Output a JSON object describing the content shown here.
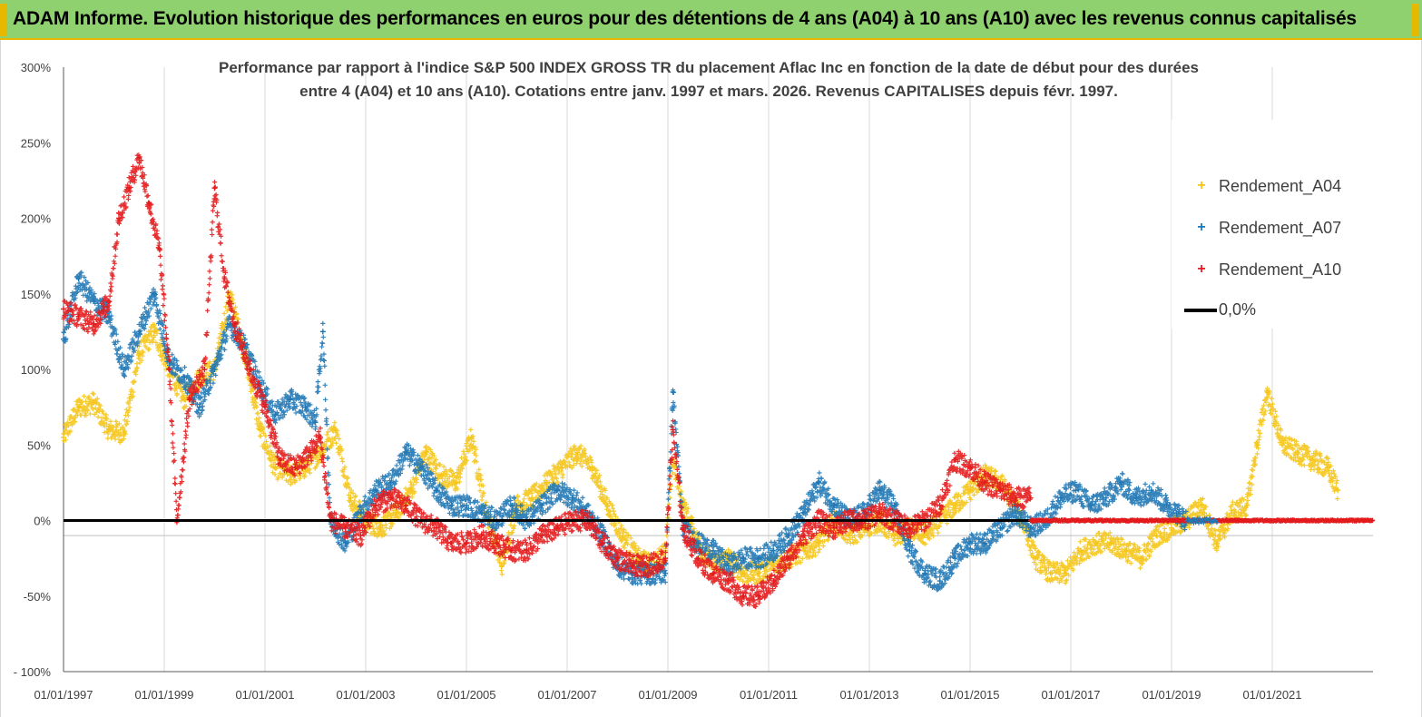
{
  "banner": {
    "title": "ADAM Informe. Evolution historique des performances en euros pour des détentions de 4 ans (A04) à 10 ans (A10) avec les revenus connus capitalisés"
  },
  "colors": {
    "banner_bg": "#8fd16f",
    "accent": "#e6b800",
    "A04": "#f5c518",
    "A07": "#1f77b4",
    "A10": "#e31a1c",
    "zero": "#000000"
  },
  "chart_data": {
    "type": "scatter",
    "title_line1": "Performance par rapport à l'indice S&P 500 INDEX GROSS TR  du placement Aflac Inc en fonction de la date de début pour des durées",
    "title_line2": "entre 4 (A04) et 10 ans (A10). Cotations entre janv. 1997 et mars. 2026. Revenus CAPITALISES depuis févr. 1997.",
    "xlabel": "",
    "ylabel": "",
    "x_range": [
      1997.0,
      2023.0
    ],
    "ylim": [
      -100,
      300
    ],
    "y_ticks": [
      -100,
      -50,
      0,
      50,
      100,
      150,
      200,
      250,
      300
    ],
    "y_tick_labels": [
      "- 100%",
      "-50%",
      "0%",
      "50%",
      "100%",
      "150%",
      "200%",
      "250%",
      "300%"
    ],
    "x_ticks": [
      1997,
      1999,
      2001,
      2003,
      2005,
      2007,
      2009,
      2011,
      2013,
      2015,
      2017,
      2019,
      2021
    ],
    "x_tick_labels": [
      "01/01/1997",
      "01/01/1999",
      "01/01/2001",
      "01/01/2003",
      "01/01/2005",
      "01/01/2007",
      "01/01/2009",
      "01/01/2011",
      "01/01/2013",
      "01/01/2015",
      "01/01/2017",
      "01/01/2019",
      "01/01/2021"
    ],
    "grid": "vertical",
    "legend_position": "top-right",
    "series": [
      {
        "name": "Rendement_A04",
        "key": "A04",
        "x": [
          1997.0,
          1997.3,
          1997.6,
          1997.9,
          1998.2,
          1998.5,
          1998.8,
          1999.1,
          1999.4,
          1999.7,
          2000.0,
          2000.3,
          2000.6,
          2000.9,
          2001.2,
          2001.5,
          2001.8,
          2002.1,
          2002.4,
          2002.7,
          2003.0,
          2003.3,
          2003.6,
          2003.9,
          2004.2,
          2004.5,
          2004.8,
          2005.1,
          2005.4,
          2005.7,
          2006.0,
          2006.3,
          2006.6,
          2006.9,
          2007.2,
          2007.5,
          2007.8,
          2008.1,
          2008.4,
          2008.7,
          2008.95,
          2009.1,
          2009.3,
          2009.6,
          2009.9,
          2010.2,
          2010.5,
          2010.8,
          2011.1,
          2011.4,
          2011.7,
          2012.0,
          2012.3,
          2012.6,
          2012.9,
          2013.2,
          2013.5,
          2013.8,
          2014.1,
          2014.4,
          2014.7,
          2015.0,
          2015.3,
          2015.6,
          2015.9,
          2016.1,
          2016.3,
          2016.6,
          2016.9,
          2017.2,
          2017.5,
          2017.8,
          2018.1,
          2018.4,
          2018.7,
          2019.0,
          2019.3,
          2019.6,
          2019.9,
          2020.2,
          2020.5,
          2020.7,
          2020.9,
          2021.2,
          2021.5,
          2021.8,
          2022.1,
          2022.3
        ],
        "values": [
          55,
          75,
          78,
          60,
          58,
          110,
          125,
          100,
          80,
          95,
          100,
          150,
          110,
          60,
          35,
          30,
          35,
          45,
          60,
          15,
          0,
          -5,
          5,
          20,
          45,
          30,
          25,
          55,
          5,
          -30,
          10,
          15,
          25,
          35,
          45,
          35,
          10,
          -10,
          -25,
          -30,
          -20,
          40,
          10,
          -15,
          -30,
          -25,
          -35,
          -35,
          -30,
          -25,
          -20,
          -15,
          0,
          -10,
          -5,
          0,
          -10,
          -5,
          -10,
          0,
          10,
          20,
          30,
          25,
          10,
          -5,
          -25,
          -35,
          -35,
          -20,
          -15,
          -15,
          -20,
          -25,
          -10,
          -5,
          0,
          10,
          -15,
          5,
          10,
          50,
          85,
          50,
          45,
          40,
          35,
          20
        ]
      },
      {
        "name": "Rendement_A07",
        "key": "A07",
        "x": [
          1997.0,
          1997.3,
          1997.6,
          1997.9,
          1998.2,
          1998.5,
          1998.8,
          1999.1,
          1999.4,
          1999.7,
          2000.0,
          2000.3,
          2000.6,
          2000.9,
          2001.2,
          2001.5,
          2001.8,
          2002.0,
          2002.15,
          2002.3,
          2002.6,
          2002.9,
          2003.2,
          2003.5,
          2003.8,
          2004.1,
          2004.4,
          2004.7,
          2005.0,
          2005.3,
          2005.6,
          2005.9,
          2006.2,
          2006.5,
          2006.8,
          2007.1,
          2007.4,
          2007.7,
          2008.0,
          2008.3,
          2008.6,
          2008.95,
          2009.1,
          2009.3,
          2009.6,
          2009.9,
          2010.2,
          2010.5,
          2010.8,
          2011.1,
          2011.4,
          2011.7,
          2012.0,
          2012.3,
          2012.6,
          2012.9,
          2013.2,
          2013.5,
          2013.8,
          2014.1,
          2014.4,
          2014.7,
          2015.0,
          2015.3,
          2015.6,
          2015.9,
          2016.2,
          2016.5,
          2016.8,
          2017.1,
          2017.4,
          2017.7,
          2018.0,
          2018.3,
          2018.6,
          2018.9,
          2019.1,
          2019.3
        ],
        "values": [
          120,
          160,
          145,
          135,
          100,
          125,
          150,
          105,
          95,
          75,
          100,
          130,
          115,
          90,
          70,
          80,
          75,
          65,
          125,
          0,
          -15,
          5,
          20,
          25,
          45,
          35,
          20,
          10,
          10,
          5,
          0,
          10,
          0,
          10,
          20,
          15,
          5,
          -10,
          -30,
          -35,
          -35,
          -35,
          85,
          -5,
          -15,
          -20,
          -30,
          -25,
          -25,
          -20,
          -10,
          5,
          25,
          10,
          0,
          5,
          20,
          10,
          -20,
          -35,
          -40,
          -25,
          -15,
          -15,
          -5,
          5,
          -5,
          0,
          15,
          20,
          10,
          15,
          25,
          15,
          20,
          10,
          5,
          0
        ]
      },
      {
        "name": "Rendement_A10",
        "key": "A10",
        "x": [
          1997.0,
          1997.3,
          1997.6,
          1997.9,
          1998.1,
          1998.3,
          1998.5,
          1998.7,
          1998.9,
          1999.1,
          1999.25,
          1999.5,
          1999.8,
          2000.0,
          2000.2,
          2000.4,
          2000.7,
          2001.0,
          2001.3,
          2001.6,
          2001.9,
          2002.1,
          2002.3,
          2002.6,
          2002.9,
          2003.2,
          2003.5,
          2003.8,
          2004.1,
          2004.4,
          2004.7,
          2005.0,
          2005.3,
          2005.6,
          2005.9,
          2006.2,
          2006.5,
          2006.8,
          2007.1,
          2007.4,
          2007.7,
          2008.0,
          2008.3,
          2008.6,
          2008.95,
          2009.1,
          2009.3,
          2009.6,
          2009.9,
          2010.2,
          2010.5,
          2010.8,
          2011.1,
          2011.4,
          2011.7,
          2012.0,
          2012.3,
          2012.6,
          2012.9,
          2013.2,
          2013.5,
          2013.8,
          2014.1,
          2014.4,
          2014.7,
          2015.0,
          2015.3,
          2015.6,
          2015.9,
          2016.2
        ],
        "values": [
          140,
          135,
          130,
          145,
          200,
          220,
          240,
          210,
          180,
          100,
          0,
          80,
          100,
          220,
          160,
          130,
          100,
          75,
          40,
          35,
          45,
          55,
          0,
          -5,
          -10,
          10,
          15,
          10,
          0,
          -5,
          -15,
          -15,
          -10,
          -15,
          -20,
          -20,
          -10,
          -5,
          0,
          0,
          -15,
          -25,
          -30,
          -30,
          -25,
          60,
          -5,
          -25,
          -35,
          -40,
          -50,
          -50,
          -40,
          -25,
          -10,
          0,
          -5,
          0,
          0,
          5,
          0,
          -5,
          0,
          10,
          40,
          35,
          25,
          20,
          15,
          15
        ]
      }
    ],
    "zero_line": {
      "name": "0,0%",
      "value": 0
    }
  }
}
